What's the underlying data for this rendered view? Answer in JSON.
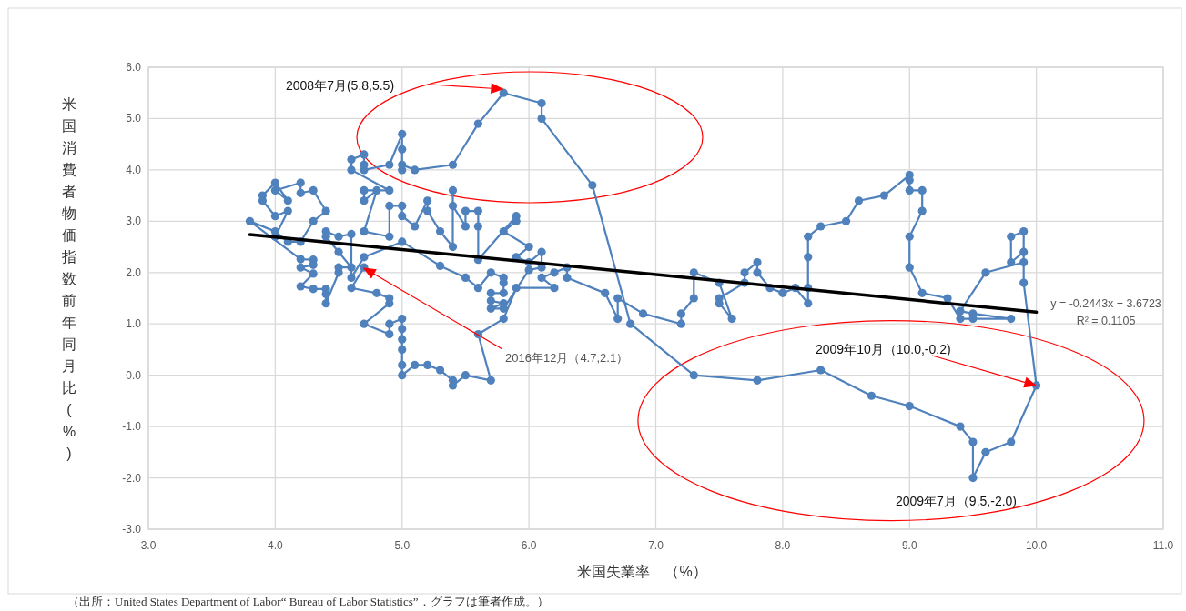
{
  "chart_data": {
    "type": "line",
    "xlabel": "米国失業率　（%）",
    "ylabel": "米国消費者物価指数前年同月比(%)",
    "xlim": [
      3,
      11
    ],
    "xticks": [
      {
        "value": 3,
        "label": "3.0"
      },
      {
        "value": 4,
        "label": "4.0"
      },
      {
        "value": 5,
        "label": "5.0"
      },
      {
        "value": 6,
        "label": "6.0"
      },
      {
        "value": 7,
        "label": "7.0"
      },
      {
        "value": 8,
        "label": "8.0"
      },
      {
        "value": 9,
        "label": "9.0"
      },
      {
        "value": 10,
        "label": "10.0"
      },
      {
        "value": 11,
        "label": "11.0"
      }
    ],
    "ylim": [
      -3,
      6
    ],
    "yticks": [
      {
        "value": -3,
        "label": "-3.0"
      },
      {
        "value": -2,
        "label": "-2.0"
      },
      {
        "value": -1,
        "label": "-1.0"
      },
      {
        "value": 0,
        "label": "0.0"
      },
      {
        "value": 1,
        "label": "1.0"
      },
      {
        "value": 2,
        "label": "2.0"
      },
      {
        "value": 3,
        "label": "3.0"
      },
      {
        "value": 4,
        "label": "4.0"
      },
      {
        "value": 5,
        "label": "5.0"
      },
      {
        "value": 6,
        "label": "6.0"
      }
    ],
    "grid": true,
    "series": [
      {
        "color": "#4f81bd",
        "marker": "circle",
        "x": [
          4.0,
          4.1,
          4.0,
          3.9,
          3.9,
          4.0,
          4.1,
          4.0,
          4.2,
          4.2,
          4.3,
          4.4,
          4.3,
          4.2,
          4.1,
          4.0,
          3.8,
          4.2,
          4.3,
          4.3,
          4.2,
          4.3,
          4.2,
          4.3,
          4.4,
          4.4,
          4.4,
          4.5,
          4.5,
          4.6,
          4.5,
          4.4,
          4.4,
          4.5,
          4.6,
          4.6,
          4.7,
          5.0,
          5.3,
          5.5,
          5.6,
          5.7,
          5.8,
          5.8,
          5.8,
          5.7,
          5.7,
          5.8,
          5.7,
          5.8,
          6.0,
          6.1,
          6.1,
          6.0,
          5.9,
          6.0,
          5.8,
          5.9,
          5.9,
          5.6,
          5.6,
          5.6,
          5.5,
          5.5,
          5.4,
          5.4,
          5.4,
          5.3,
          5.2,
          5.2,
          5.1,
          5.0,
          5.0,
          4.9,
          4.9,
          4.7,
          4.8,
          4.7,
          4.7,
          4.9,
          4.6,
          4.6,
          4.7,
          4.7,
          4.7,
          4.9,
          5.0,
          5.0,
          5.0,
          5.0,
          5.1,
          5.4,
          5.6,
          5.8,
          6.1,
          6.1,
          6.5,
          6.8,
          7.3,
          7.8,
          8.3,
          8.7,
          9.0,
          9.4,
          9.5,
          9.5,
          9.6,
          9.8,
          10.0,
          9.9,
          9.9,
          9.8,
          9.8,
          9.9,
          9.9,
          9.6,
          9.4,
          9.5,
          9.8,
          9.5,
          9.4,
          9.3,
          9.1,
          9.0,
          9.0,
          9.1,
          9.1,
          9.0,
          9.0,
          9.0,
          8.8,
          8.6,
          8.5,
          8.3,
          8.2,
          8.2,
          8.2,
          8.2,
          8.1,
          8.0,
          7.9,
          7.8,
          7.8,
          7.7,
          7.7,
          7.5,
          7.5,
          7.6,
          7.5,
          7.3,
          7.3,
          7.2,
          7.2,
          6.9,
          6.7,
          6.7,
          6.6,
          6.3,
          6.3,
          6.2,
          6.1,
          6.2,
          5.9,
          5.8,
          5.6,
          5.7,
          5.5,
          5.4,
          5.4,
          5.3,
          5.2,
          5.1,
          5.0,
          5.0,
          5.0,
          5.0,
          5.0,
          5.0,
          4.9,
          4.9,
          4.7,
          4.9,
          4.9,
          4.8,
          4.6,
          4.7
        ],
        "values": [
          2.7,
          3.2,
          3.1,
          3.4,
          3.5,
          3.75,
          3.4,
          3.6,
          3.75,
          3.55,
          3.6,
          3.2,
          3.0,
          2.6,
          2.6,
          2.8,
          3.0,
          2.26,
          2.25,
          2.15,
          2.1,
          1.98,
          1.73,
          1.68,
          1.68,
          1.58,
          1.4,
          2.0,
          2.1,
          2.1,
          2.4,
          2.7,
          2.8,
          2.7,
          2.75,
          1.9,
          2.3,
          2.6,
          2.13,
          1.9,
          1.7,
          2.0,
          1.9,
          1.8,
          1.6,
          1.6,
          1.45,
          1.4,
          1.3,
          1.3,
          2.05,
          2.1,
          2.4,
          2.2,
          2.3,
          2.5,
          2.8,
          3.0,
          3.1,
          2.25,
          2.9,
          3.2,
          3.2,
          2.9,
          3.3,
          3.6,
          2.5,
          2.8,
          3.2,
          3.4,
          2.9,
          3.1,
          3.3,
          3.3,
          2.7,
          2.8,
          3.6,
          3.4,
          3.6,
          3.6,
          4.0,
          4.2,
          4.3,
          4.1,
          4.0,
          4.1,
          4.7,
          4.4,
          4.0,
          4.1,
          4.0,
          4.1,
          4.9,
          5.5,
          5.3,
          5.0,
          3.7,
          1.0,
          0.0,
          -0.1,
          0.1,
          -0.4,
          -0.6,
          -1.0,
          -1.3,
          -2.0,
          -1.5,
          -1.3,
          -0.2,
          1.8,
          2.8,
          2.7,
          2.2,
          2.4,
          2.2,
          2.0,
          1.25,
          1.2,
          1.1,
          1.1,
          1.1,
          1.5,
          1.6,
          2.1,
          2.7,
          3.2,
          3.6,
          3.6,
          3.8,
          3.9,
          3.5,
          3.4,
          3.0,
          2.9,
          2.7,
          2.3,
          1.7,
          1.4,
          1.7,
          1.6,
          1.7,
          2.0,
          2.2,
          2.0,
          1.8,
          1.5,
          1.4,
          1.1,
          1.8,
          2.0,
          1.5,
          1.2,
          1.0,
          1.2,
          1.5,
          1.1,
          1.6,
          1.9,
          2.1,
          2.0,
          1.9,
          1.7,
          1.7,
          1.1,
          0.8,
          -0.1,
          0.0,
          -0.2,
          -0.1,
          0.1,
          0.2,
          0.2,
          0.0,
          0.2,
          0.5,
          0.7,
          0.9,
          1.1,
          1.0,
          0.8,
          1.0,
          1.4,
          1.5,
          1.6,
          1.7,
          2.1
        ]
      },
      {
        "type": "line",
        "color": "#000000",
        "marker": "none",
        "x": [
          3.8,
          10.0
        ],
        "values": [
          2.74,
          1.23
        ]
      }
    ],
    "annotations": [
      "2008年7月(5.8,5.5)",
      "2016年12月（4.7,2.1）",
      "2009年10月（10.0,-0.2)",
      {
        "text": "2009年7月（9.5,-2.0)",
        "x": 9.5,
        "y": -2.0
      },
      "y = -0.2443x + 3.6723",
      "R² = 0.1105",
      "（出所：United States Department of Labor“ Bureau of Labor Statistics”．グラフは筆者作成。）"
    ]
  }
}
